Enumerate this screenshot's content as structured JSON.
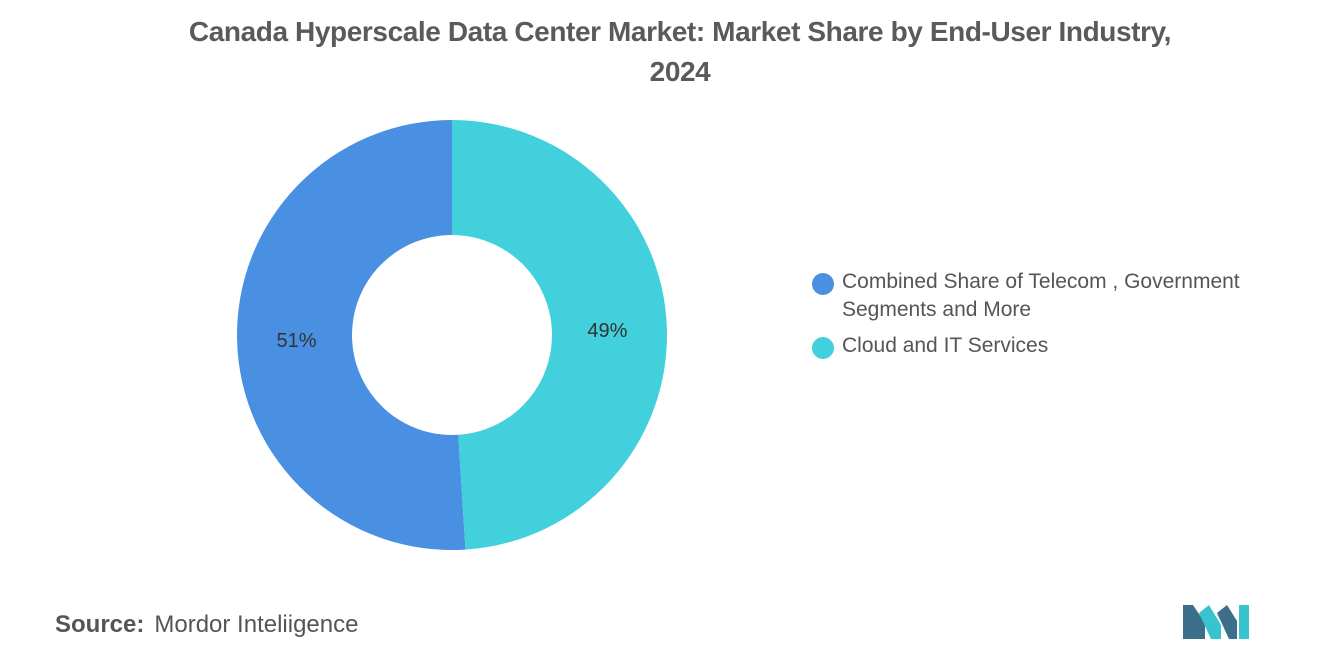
{
  "title_lines": [
    "Canada Hyperscale Data Center Market: Market Share by End-User Industry,",
    "2024"
  ],
  "source": {
    "label": "Source:",
    "text": "Mordor Inteliigence"
  },
  "colors": {
    "series1": "#4a90e2",
    "series2": "#41d0dc",
    "logo_dark": "#3d6e8a",
    "logo_light": "#37c4cf"
  },
  "logo": {
    "name": "mordor-intelligence-logo"
  },
  "chart_data": {
    "type": "pie",
    "title": "Canada Hyperscale Data Center Market: Market Share by End-User Industry, 2024",
    "series": [
      {
        "name": "Combined Share of Telecom , Government Segments and More",
        "value": 51,
        "label": "51%"
      },
      {
        "name": "Cloud and IT Services",
        "value": 49,
        "label": "49%"
      }
    ],
    "legend_position": "right",
    "donut": true
  }
}
